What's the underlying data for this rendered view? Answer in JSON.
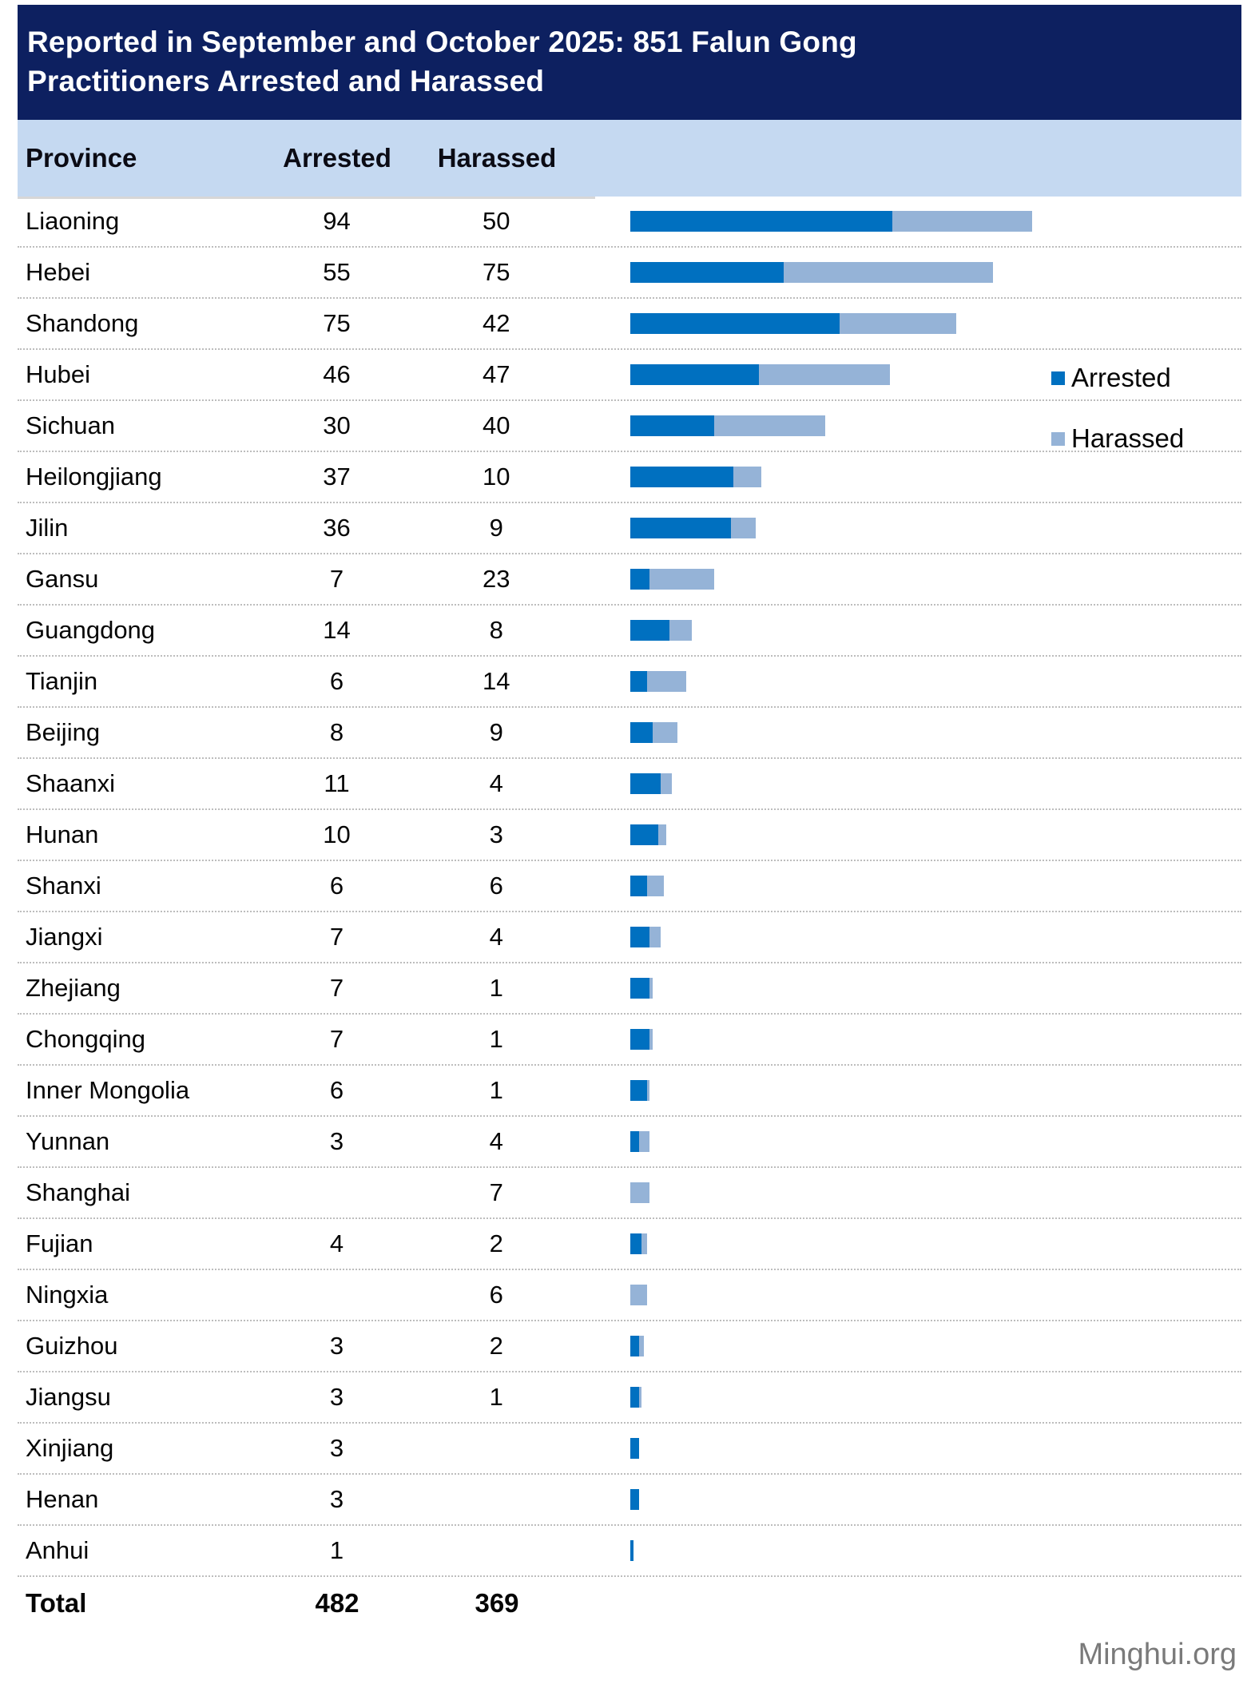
{
  "title_lines": [
    "Reported in September and October 2025: 851 Falun Gong",
    "Practitioners Arrested and Harassed"
  ],
  "columns": {
    "province": "Province",
    "arrested": "Arrested",
    "harassed": "Harassed"
  },
  "legend": {
    "arrested": "Arrested",
    "harassed": "Harassed"
  },
  "total": {
    "label": "Total",
    "arrested": "482",
    "harassed": "369"
  },
  "footer": "Minghui.org",
  "colors": {
    "title_bg": "#0d2060",
    "header_bg": "#c5d9f1",
    "arrested": "#0070c0",
    "harassed": "#95b3d7",
    "separator": "#bdbdbd",
    "footer_text": "#7a7a7a"
  },
  "chart_data": {
    "type": "bar",
    "orientation": "horizontal",
    "stacked": true,
    "title": "Reported in September and October 2025: 851 Falun Gong Practitioners Arrested and Harassed",
    "legend_position": "right",
    "grid": false,
    "axis_labels_shown": false,
    "categories": [
      "Liaoning",
      "Hebei",
      "Shandong",
      "Hubei",
      "Sichuan",
      "Heilongjiang",
      "Jilin",
      "Gansu",
      "Guangdong",
      "Tianjin",
      "Beijing",
      "Shaanxi",
      "Hunan",
      "Shanxi",
      "Jiangxi",
      "Zhejiang",
      "Chongqing",
      "Inner Mongolia",
      "Yunnan",
      "Shanghai",
      "Fujian",
      "Ningxia",
      "Guizhou",
      "Jiangsu",
      "Xinjiang",
      "Henan",
      "Anhui"
    ],
    "series": [
      {
        "name": "Arrested",
        "values": [
          94,
          55,
          75,
          46,
          30,
          37,
          36,
          7,
          14,
          6,
          8,
          11,
          10,
          6,
          7,
          7,
          7,
          6,
          3,
          null,
          4,
          null,
          3,
          3,
          3,
          3,
          1
        ]
      },
      {
        "name": "Harassed",
        "values": [
          50,
          75,
          42,
          47,
          40,
          10,
          9,
          23,
          8,
          14,
          9,
          4,
          3,
          6,
          4,
          1,
          1,
          1,
          4,
          7,
          2,
          6,
          2,
          1,
          null,
          null,
          null
        ]
      }
    ],
    "totals": {
      "arrested": 482,
      "harassed": 369,
      "overall": 851
    }
  }
}
